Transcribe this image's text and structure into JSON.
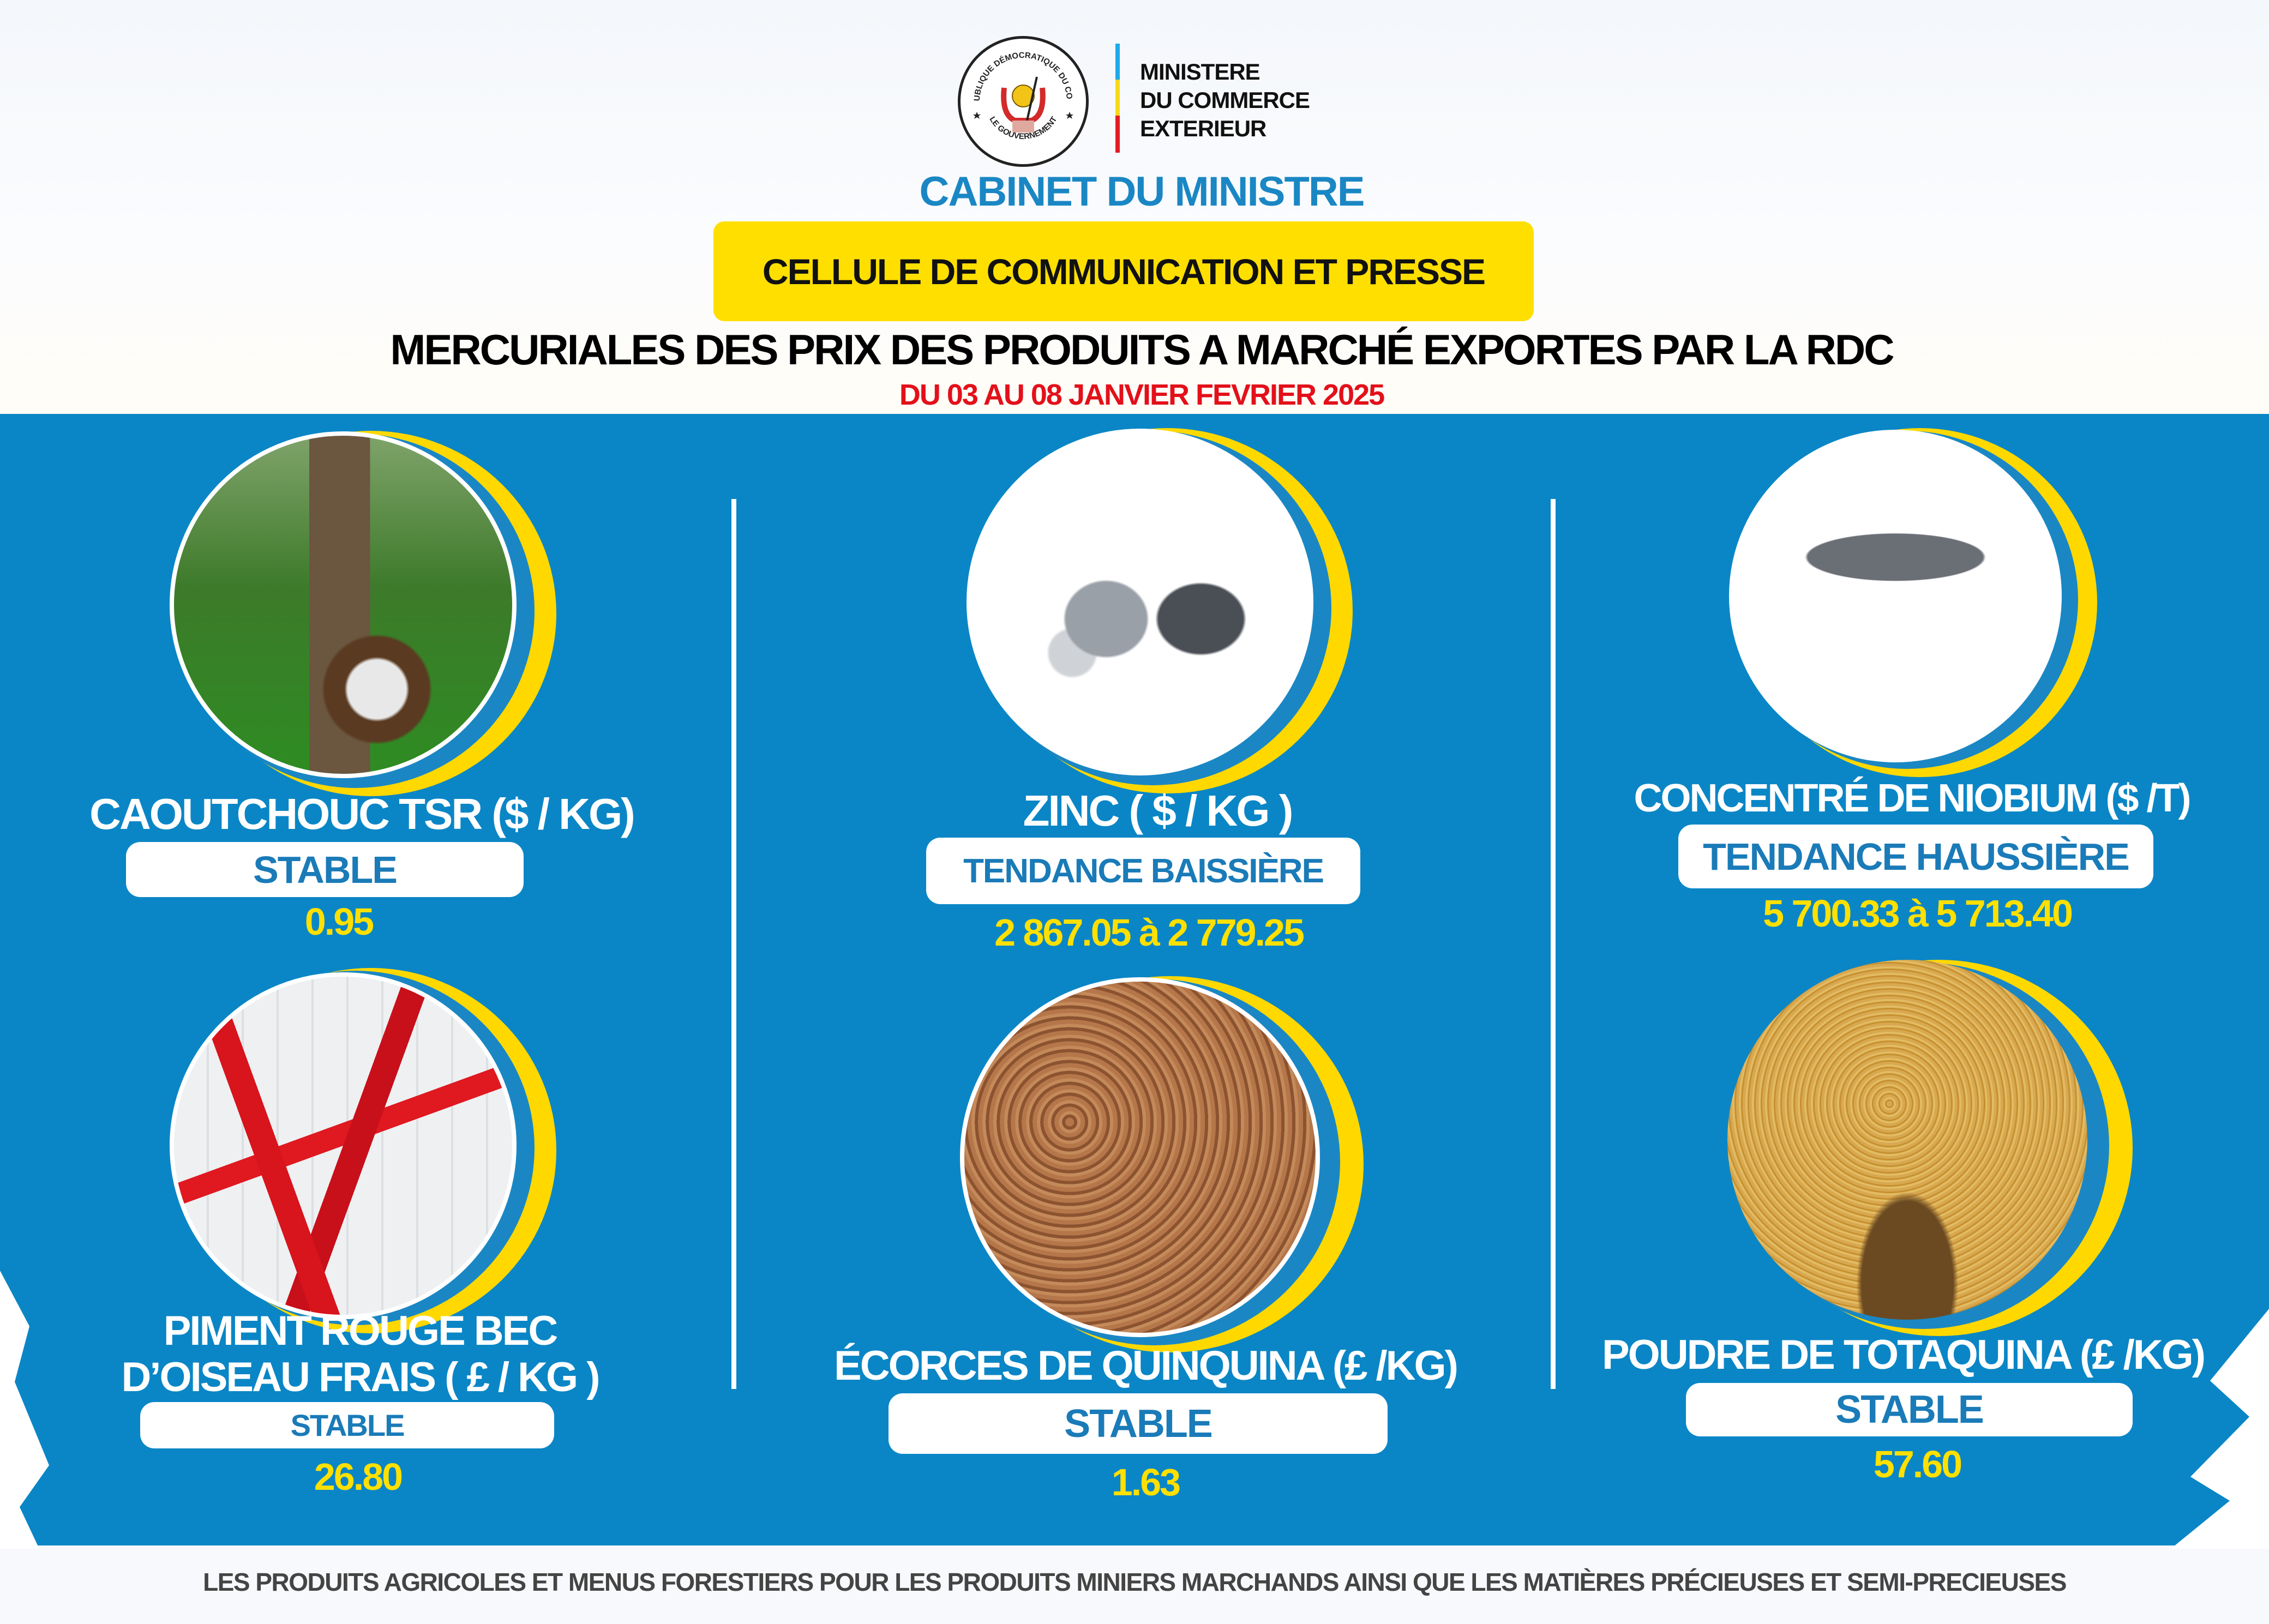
{
  "header": {
    "seal_text_top": "RÉPUBLIQUE DÉMOCRATIQUE DU CONGO",
    "seal_text_bottom": "LE GOUVERNEMENT",
    "ministry_lines": [
      "MINISTERE",
      "DU COMMERCE",
      "EXTERIEUR"
    ],
    "cabinet": "CABINET DU MINISTRE",
    "cellule": "CELLULE DE COMMUNICATION ET PRESSE",
    "title": "MERCURIALES DES PRIX DES PRODUITS A MARCHÉ EXPORTES PAR LA RDC",
    "dates": "DU 03  AU 08  JANVIER   FEVRIER 2025"
  },
  "colors": {
    "panel": "#0a86c6",
    "accent_yellow": "#ffdf00",
    "title_blue": "#1a87c4",
    "date_red": "#e3101a",
    "trend_text": "#1a7bb8"
  },
  "products": [
    {
      "name": "CAOUTCHOUC TSR  ($ / KG)",
      "trend": "STABLE",
      "price": "0.95",
      "image": "rubber-tree-latex-photo"
    },
    {
      "name": "ZINC  ( $ / KG )",
      "trend": "TENDANCE BAISSIÈRE",
      "price": "2 867.05 à 2 779.25",
      "image": "zinc-metal-photo"
    },
    {
      "name": "CONCENTRÉ  DE NIOBIUM ($ /T)",
      "trend": "TENDANCE HAUSSIÈRE",
      "price": "5 700.33 à  5 713.40",
      "image": "niobium-crystal-photo"
    },
    {
      "name_lines": [
        "PIMENT ROUGE BEC",
        "D’OISEAU FRAIS  ( £ / KG )"
      ],
      "trend": "STABLE",
      "price": "26.80",
      "image": "red-chili-photo"
    },
    {
      "name": "ÉCORCES DE QUINQUINA (£ /KG)",
      "trend": "STABLE",
      "price": "1.63",
      "image": "cinchona-bark-photo"
    },
    {
      "name": "POUDRE DE TOTAQUINA (£ /KG)",
      "trend": "STABLE",
      "price": "57.60",
      "image": "totaquina-powder-photo"
    }
  ],
  "footer": "LES PRODUITS AGRICOLES ET MENUS FORESTIERS POUR LES PRODUITS MINIERS MARCHANDS AINSI QUE LES  MATIÈRES PRÉCIEUSES ET SEMI-PRECIEUSES"
}
